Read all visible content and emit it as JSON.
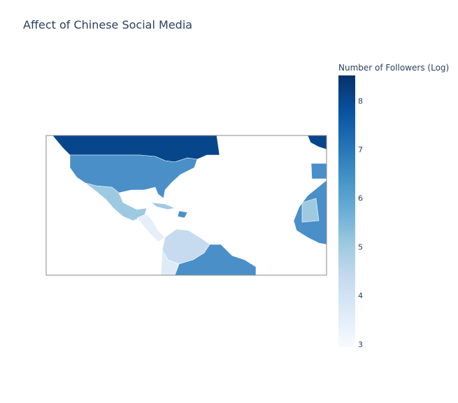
{
  "chart_data": {
    "type": "choropleth",
    "title": "Affect of Chinese Social Media",
    "colorbar_title": "Number of Followers (Log)",
    "colorscale": [
      "#f7fbff",
      "#deebf7",
      "#c6dbef",
      "#9ecae1",
      "#6baed6",
      "#4292c6",
      "#2171b5",
      "#08519c",
      "#08306b"
    ],
    "clim": [
      2.94,
      8.52
    ],
    "cticks": [
      3,
      4,
      5,
      6,
      7,
      8
    ]
  }
}
